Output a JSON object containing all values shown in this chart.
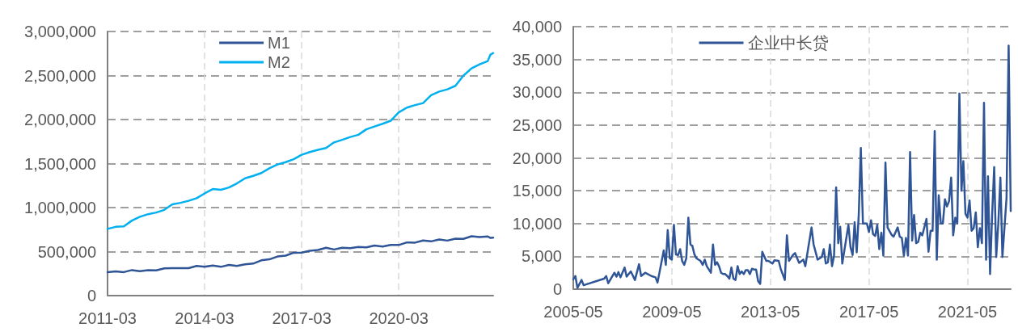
{
  "chart_data": [
    {
      "type": "line",
      "x": [
        "2011-03",
        "2011-06",
        "2011-09",
        "2011-12",
        "2012-03",
        "2012-06",
        "2012-09",
        "2012-12",
        "2013-03",
        "2013-06",
        "2013-09",
        "2013-12",
        "2014-03",
        "2014-06",
        "2014-09",
        "2014-12",
        "2015-03",
        "2015-06",
        "2015-09",
        "2015-12",
        "2016-03",
        "2016-06",
        "2016-09",
        "2016-12",
        "2017-03",
        "2017-06",
        "2017-09",
        "2017-12",
        "2018-03",
        "2018-06",
        "2018-09",
        "2018-12",
        "2019-03",
        "2019-06",
        "2019-09",
        "2019-12",
        "2020-03",
        "2020-06",
        "2020-09",
        "2020-12",
        "2021-03",
        "2021-06",
        "2021-09",
        "2021-12",
        "2022-03",
        "2022-06",
        "2022-09",
        "2022-12",
        "2023-01",
        "2023-02"
      ],
      "series": [
        {
          "name": "M1",
          "color": "#2f5597",
          "values": [
            266000,
            275000,
            267000,
            290000,
            278000,
            288000,
            287000,
            309000,
            311000,
            313000,
            312000,
            337000,
            328000,
            341000,
            327000,
            348000,
            337000,
            356000,
            364000,
            401000,
            412000,
            444000,
            454000,
            487000,
            489000,
            510000,
            518000,
            544000,
            524000,
            544000,
            539000,
            552000,
            548000,
            568000,
            557000,
            576000,
            575000,
            604000,
            602000,
            626000,
            616000,
            637000,
            625000,
            647000,
            645000,
            674000,
            665000,
            672000,
            655000,
            658000
          ]
        },
        {
          "name": "M2",
          "color": "#00b0f0",
          "values": [
            758000,
            781000,
            787000,
            852000,
            896000,
            925000,
            944000,
            974000,
            1036000,
            1054000,
            1077000,
            1107000,
            1161000,
            1210000,
            1202000,
            1228000,
            1275000,
            1333000,
            1360000,
            1392000,
            1446000,
            1490000,
            1516000,
            1550000,
            1600000,
            1631000,
            1656000,
            1677000,
            1740000,
            1770000,
            1802000,
            1827000,
            1889000,
            1921000,
            1952000,
            1986000,
            2081000,
            2135000,
            2164000,
            2187000,
            2276000,
            2318000,
            2343000,
            2383000,
            2498000,
            2581000,
            2627000,
            2664000,
            2738000,
            2755000
          ]
        }
      ],
      "xlim": [
        "2011-03",
        "2023-02"
      ],
      "xticks": [
        "2011-03",
        "2014-03",
        "2017-03",
        "2020-03"
      ],
      "ylim": [
        0,
        3000000
      ],
      "yticks": [
        {
          "value": 0,
          "label": "0"
        },
        {
          "value": 500000,
          "label": "500,000"
        },
        {
          "value": 1000000,
          "label": "1,000,000"
        },
        {
          "value": 1500000,
          "label": "1,500,000"
        },
        {
          "value": 2000000,
          "label": "2,000,000"
        },
        {
          "value": 2500000,
          "label": "2,500,000"
        },
        {
          "value": 3000000,
          "label": "3,000,000"
        }
      ],
      "grid": true,
      "legend": "top",
      "marker": "none",
      "line_style": "solid"
    },
    {
      "type": "line",
      "x": [
        "2005-05",
        "2005-06",
        "2005-07",
        "2005-09",
        "2005-10",
        "2006-08",
        "2006-09",
        "2006-10",
        "2007-01",
        "2007-02",
        "2007-03",
        "2007-04",
        "2007-06",
        "2007-07",
        "2007-09",
        "2007-11",
        "2008-01",
        "2008-02",
        "2008-04",
        "2008-07",
        "2008-09",
        "2008-10",
        "2009-01",
        "2009-02",
        "2009-03",
        "2009-04",
        "2009-05",
        "2009-06",
        "2009-07",
        "2009-08",
        "2009-09",
        "2009-10",
        "2009-11",
        "2009-12",
        "2010-01",
        "2010-02",
        "2010-03",
        "2010-04",
        "2010-05",
        "2010-06",
        "2010-07",
        "2010-08",
        "2010-09",
        "2010-10",
        "2010-11",
        "2010-12",
        "2011-01",
        "2011-02",
        "2011-03",
        "2011-04",
        "2011-05",
        "2011-06",
        "2011-07",
        "2011-08",
        "2011-09",
        "2011-10",
        "2011-11",
        "2011-12",
        "2012-01",
        "2012-02",
        "2012-03",
        "2012-04",
        "2012-05",
        "2012-06",
        "2012-07",
        "2012-08",
        "2012-09",
        "2012-10",
        "2012-11",
        "2012-12",
        "2013-01",
        "2013-03",
        "2013-04",
        "2013-06",
        "2013-07",
        "2013-09",
        "2013-10",
        "2013-12",
        "2014-01",
        "2014-02",
        "2014-04",
        "2014-05",
        "2014-07",
        "2014-09",
        "2014-10",
        "2015-01",
        "2015-02",
        "2015-04",
        "2015-06",
        "2015-07",
        "2015-08",
        "2015-09",
        "2015-10",
        "2015-11",
        "2015-12",
        "2016-01",
        "2016-02",
        "2016-03",
        "2016-04",
        "2016-07",
        "2016-08",
        "2016-09",
        "2016-10",
        "2016-11",
        "2016-12",
        "2017-01",
        "2017-02",
        "2017-04",
        "2017-05",
        "2017-06",
        "2017-07",
        "2017-08",
        "2017-09",
        "2017-10",
        "2017-11",
        "2017-12",
        "2018-01",
        "2018-02",
        "2018-04",
        "2018-05",
        "2018-07",
        "2018-08",
        "2018-09",
        "2018-10",
        "2018-11",
        "2018-12",
        "2019-01",
        "2019-02",
        "2019-03",
        "2019-04",
        "2019-05",
        "2019-06",
        "2019-07",
        "2019-09",
        "2019-10",
        "2019-11",
        "2019-12",
        "2020-01",
        "2020-02",
        "2020-03",
        "2020-04",
        "2020-05",
        "2020-06",
        "2020-07",
        "2020-08",
        "2020-09",
        "2020-10",
        "2020-11",
        "2020-12",
        "2021-01",
        "2021-02",
        "2021-03",
        "2021-04",
        "2021-05",
        "2021-06",
        "2021-07",
        "2021-08",
        "2021-09",
        "2021-10",
        "2021-11",
        "2021-12",
        "2022-01",
        "2022-02",
        "2022-03",
        "2022-04",
        "2022-05",
        "2022-06",
        "2022-07",
        "2022-08",
        "2022-09",
        "2022-10",
        "2022-12",
        "2023-01",
        "2023-02"
      ],
      "series": [
        {
          "name": "企业中长贷",
          "color": "#2f5597",
          "values": [
            1500,
            2000,
            200,
            1400,
            600,
            1600,
            2000,
            900,
            2500,
            1900,
            2600,
            1800,
            3300,
            1900,
            2700,
            1400,
            3800,
            2000,
            2500,
            2000,
            1800,
            1000,
            5900,
            3700,
            9000,
            4700,
            4500,
            9800,
            5300,
            5200,
            6100,
            4300,
            3700,
            4700,
            10900,
            6800,
            6600,
            5300,
            4700,
            4500,
            4300,
            3700,
            4500,
            3500,
            3000,
            2500,
            6800,
            3700,
            4100,
            3500,
            2500,
            2300,
            2300,
            2000,
            1600,
            3300,
            1600,
            1400,
            3500,
            2300,
            2700,
            2300,
            2900,
            2900,
            2300,
            3100,
            3000,
            3000,
            1200,
            800,
            5700,
            4300,
            4300,
            3900,
            4400,
            4300,
            3100,
            1400,
            8200,
            4300,
            5200,
            5500,
            4000,
            4500,
            3500,
            9400,
            6800,
            4500,
            4900,
            6100,
            3900,
            4100,
            6800,
            3500,
            5100,
            15500,
            7000,
            9500,
            3900,
            9800,
            6400,
            5200,
            10200,
            5600,
            11300,
            21500,
            10000,
            10000,
            8700,
            10500,
            8400,
            8100,
            9800,
            6100,
            8600,
            5100,
            19300,
            9400,
            8300,
            8000,
            9400,
            8000,
            7800,
            5100,
            7800,
            5100,
            20900,
            7400,
            11300,
            7000,
            7200,
            8600,
            8200,
            10700,
            5700,
            8900,
            8900,
            24100,
            4500,
            14300,
            10000,
            10000,
            13700,
            12600,
            13400,
            17000,
            8200,
            10900,
            10000,
            29800,
            15000,
            19500,
            11500,
            10900,
            13500,
            8900,
            9300,
            11700,
            6400,
            9300,
            7000,
            28400,
            4500,
            17200,
            2300,
            11300,
            18600,
            4900,
            10000,
            17000,
            4900,
            13900,
            37100,
            11900
          ]
        }
      ],
      "xlim": [
        "2005-05",
        "2023-02"
      ],
      "xticks": [
        "2005-05",
        "2009-05",
        "2013-05",
        "2017-05",
        "2021-05"
      ],
      "ylim": [
        0,
        40000
      ],
      "yticks": [
        {
          "value": 0,
          "label": "0"
        },
        {
          "value": 5000,
          "label": "5,000"
        },
        {
          "value": 10000,
          "label": "10,000"
        },
        {
          "value": 15000,
          "label": "15,000"
        },
        {
          "value": 20000,
          "label": "20,000"
        },
        {
          "value": 25000,
          "label": "25,000"
        },
        {
          "value": 30000,
          "label": "30,000"
        },
        {
          "value": 35000,
          "label": "35,000"
        },
        {
          "value": 40000,
          "label": "40,000"
        }
      ],
      "grid": true,
      "legend": "top",
      "marker": "none",
      "line_style": "solid"
    }
  ]
}
